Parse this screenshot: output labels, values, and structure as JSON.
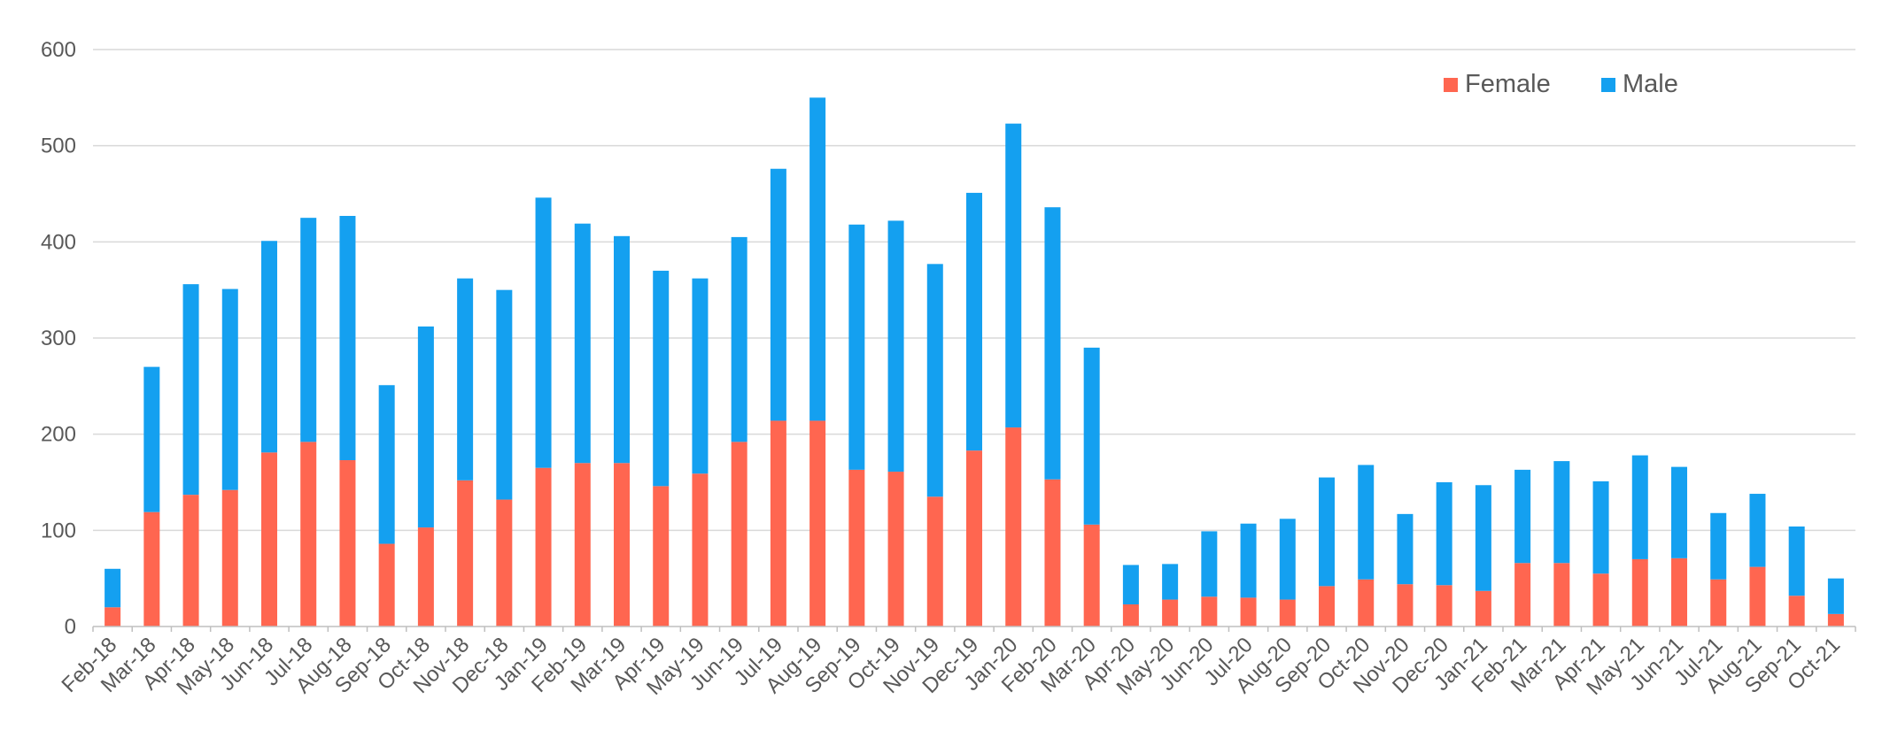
{
  "chart_data": {
    "type": "bar",
    "stacked": true,
    "title": "",
    "xlabel": "",
    "ylabel": "",
    "ylim": [
      0,
      600
    ],
    "yticks": [
      0,
      100,
      200,
      300,
      400,
      500,
      600
    ],
    "grid": true,
    "legend_position": "top-right",
    "categories": [
      "Feb-18",
      "Mar-18",
      "Apr-18",
      "May-18",
      "Jun-18",
      "Jul-18",
      "Aug-18",
      "Sep-18",
      "Oct-18",
      "Nov-18",
      "Dec-18",
      "Jan-19",
      "Feb-19",
      "Mar-19",
      "Apr-19",
      "May-19",
      "Jun-19",
      "Jul-19",
      "Aug-19",
      "Sep-19",
      "Oct-19",
      "Nov-19",
      "Dec-19",
      "Jan-20",
      "Feb-20",
      "Mar-20",
      "Apr-20",
      "May-20",
      "Jun-20",
      "Jul-20",
      "Aug-20",
      "Sep-20",
      "Oct-20",
      "Nov-20",
      "Dec-20",
      "Jan-21",
      "Feb-21",
      "Mar-21",
      "Apr-21",
      "May-21",
      "Jun-21",
      "Jul-21",
      "Aug-21",
      "Sep-21",
      "Oct-21"
    ],
    "series": [
      {
        "name": "Female",
        "color": "#ff6650",
        "values": [
          20,
          119,
          137,
          142,
          181,
          192,
          173,
          86,
          103,
          152,
          132,
          165,
          170,
          170,
          146,
          159,
          192,
          214,
          214,
          163,
          161,
          135,
          183,
          207,
          153,
          106,
          23,
          28,
          31,
          30,
          28,
          42,
          49,
          44,
          43,
          37,
          66,
          66,
          55,
          70,
          71,
          49,
          62,
          32,
          13
        ]
      },
      {
        "name": "Male",
        "color": "#14a0f0",
        "values": [
          40,
          151,
          219,
          209,
          220,
          233,
          254,
          165,
          209,
          210,
          218,
          281,
          249,
          236,
          224,
          203,
          213,
          262,
          336,
          255,
          261,
          242,
          268,
          316,
          283,
          184,
          41,
          37,
          68,
          77,
          84,
          113,
          119,
          73,
          107,
          110,
          97,
          106,
          96,
          108,
          95,
          69,
          76,
          72,
          37
        ]
      }
    ]
  }
}
